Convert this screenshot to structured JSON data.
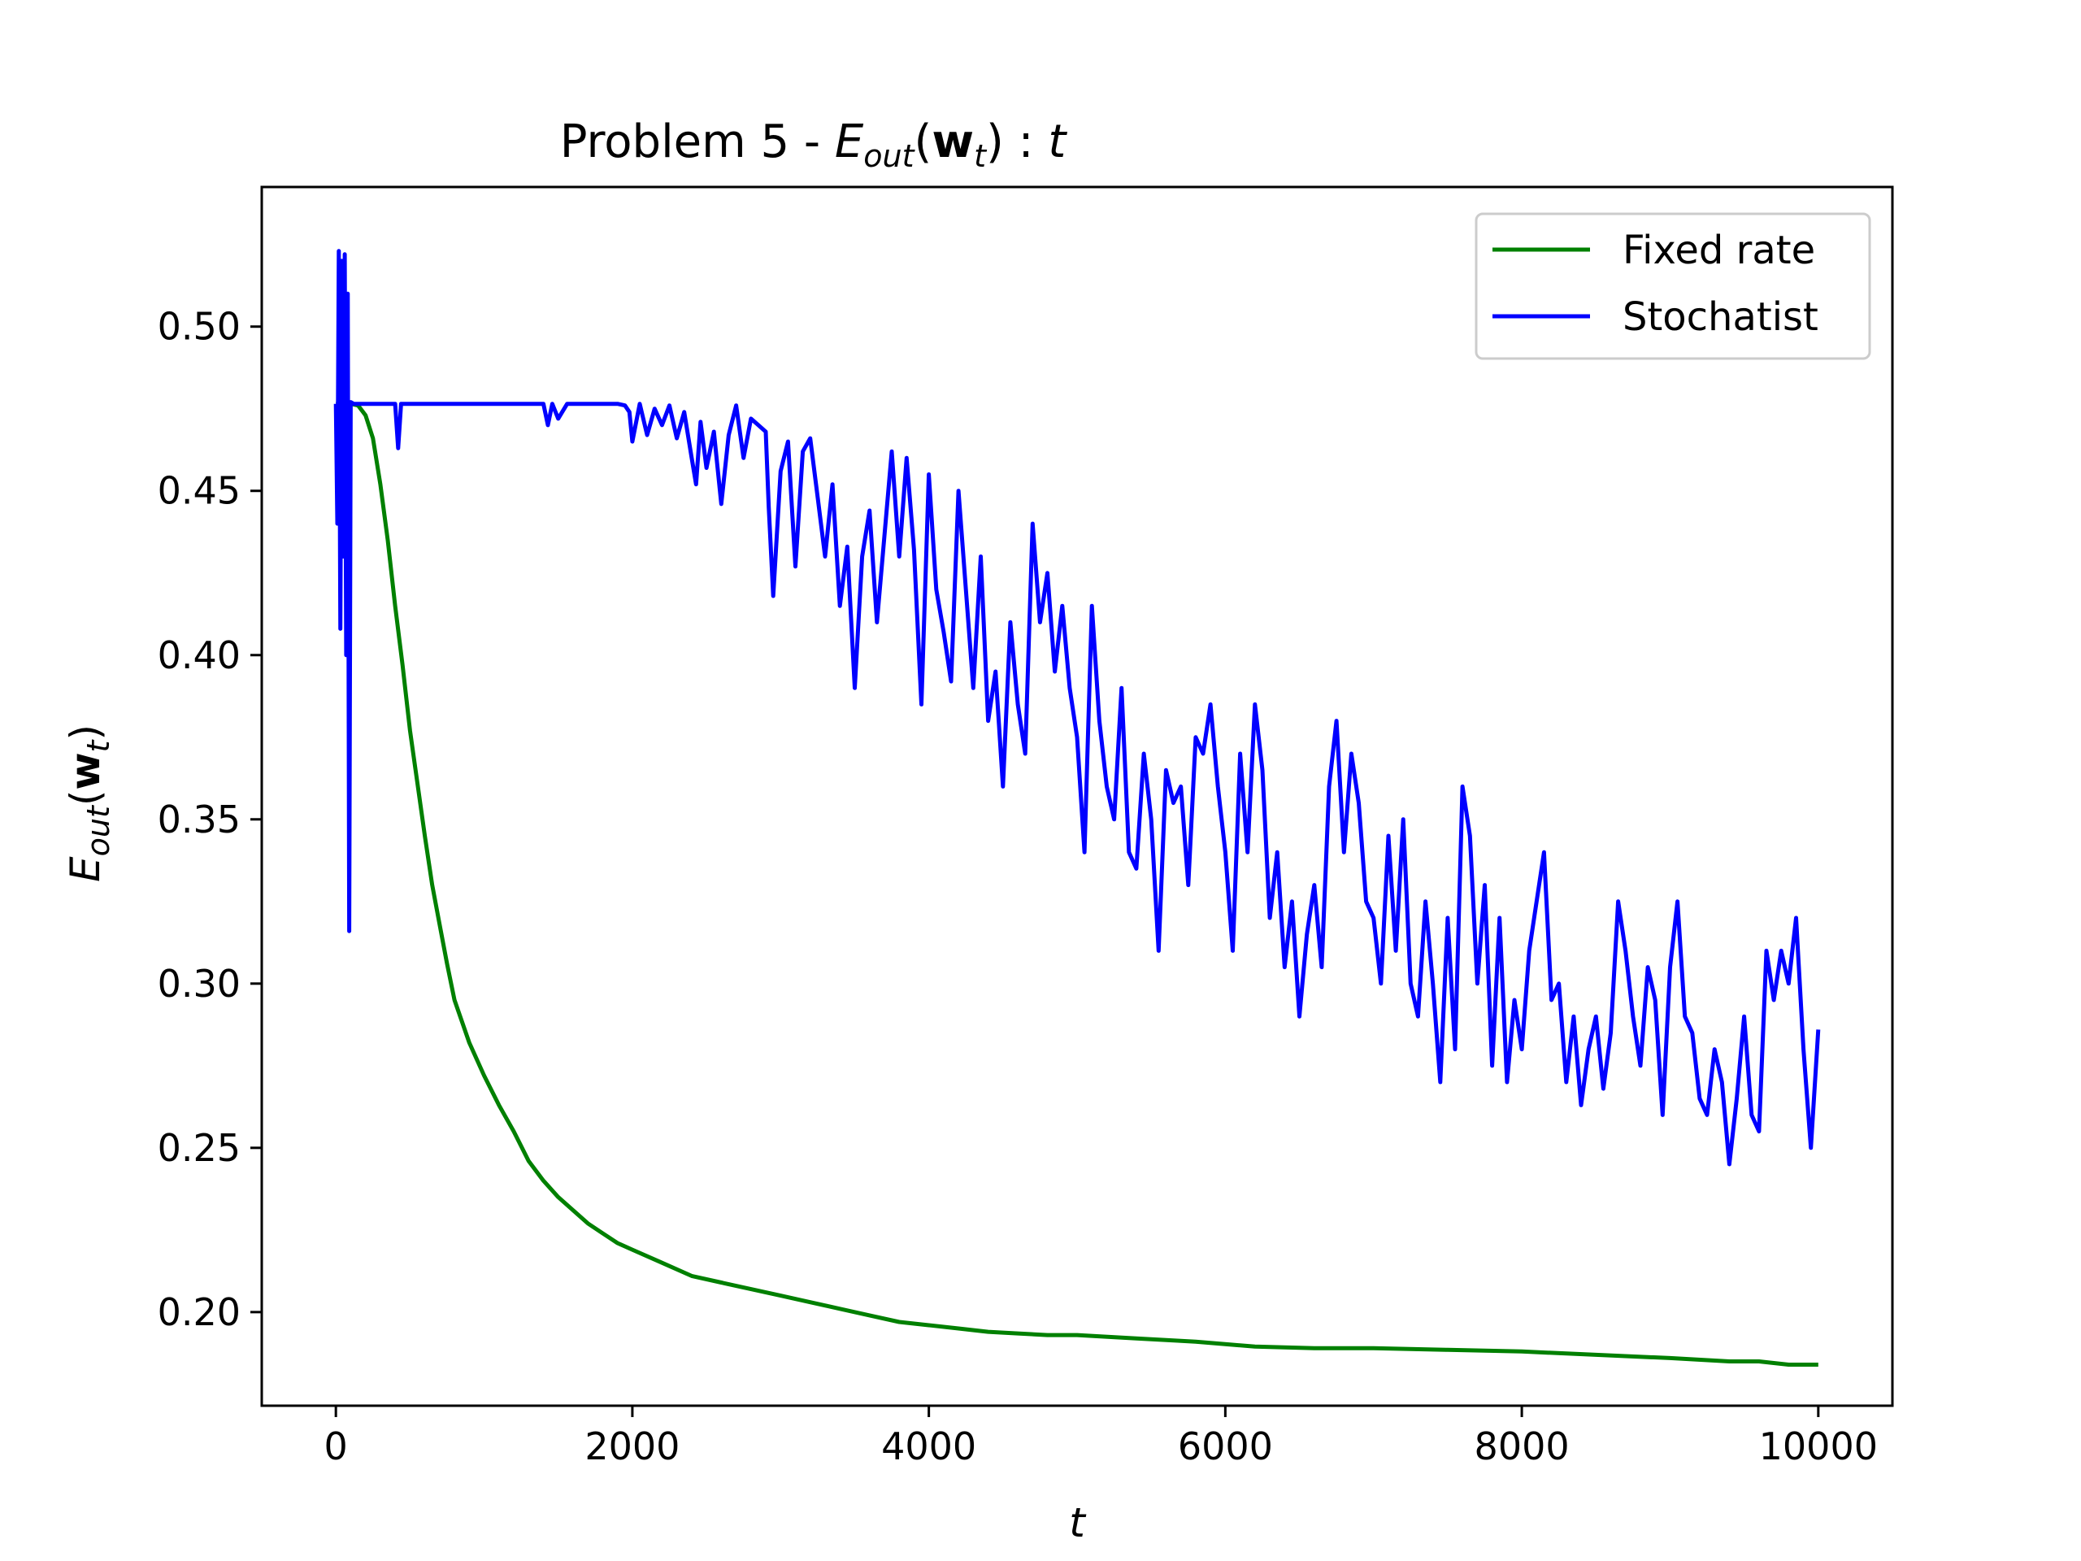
{
  "chart_data": {
    "type": "line",
    "title": {
      "prefix": "Problem 5 - ",
      "func": "E",
      "func_sub": "out",
      "arg_open": "(",
      "arg": "w",
      "arg_sub": "t",
      "arg_close": ")",
      "sep": " : ",
      "var": "t"
    },
    "xlabel": "t",
    "ylabel": {
      "func": "E",
      "func_sub": "out",
      "arg_open": "(",
      "arg": "w",
      "arg_sub": "t",
      "arg_close": ")"
    },
    "xlim": [
      -500,
      10500
    ],
    "ylim": [
      0.1715,
      0.5425
    ],
    "xticks": [
      0,
      2000,
      4000,
      6000,
      8000,
      10000
    ],
    "xtick_labels": [
      "0",
      "2000",
      "4000",
      "6000",
      "8000",
      "10000"
    ],
    "yticks": [
      0.2,
      0.25,
      0.3,
      0.35,
      0.4,
      0.45,
      0.5
    ],
    "ytick_labels": [
      "0.20",
      "0.25",
      "0.30",
      "0.35",
      "0.40",
      "0.45",
      "0.50"
    ],
    "grid": false,
    "legend_position": "top-right",
    "series": [
      {
        "name": "Fixed rate",
        "color": "#008000",
        "x": [
          0,
          100,
          150,
          200,
          250,
          300,
          350,
          400,
          450,
          500,
          550,
          600,
          650,
          700,
          750,
          800,
          900,
          1000,
          1100,
          1200,
          1300,
          1400,
          1500,
          1600,
          1700,
          1800,
          1900,
          2000,
          2200,
          2400,
          2600,
          2800,
          3000,
          3200,
          3400,
          3600,
          3800,
          4000,
          4200,
          4400,
          4600,
          4800,
          5000,
          5400,
          5800,
          6200,
          6600,
          7000,
          7500,
          8000,
          8500,
          9000,
          9400,
          9600,
          9800,
          10000
        ],
        "values": [
          0.4765,
          0.4765,
          0.476,
          0.473,
          0.466,
          0.452,
          0.435,
          0.415,
          0.397,
          0.377,
          0.361,
          0.345,
          0.33,
          0.318,
          0.306,
          0.295,
          0.282,
          0.272,
          0.263,
          0.255,
          0.246,
          0.24,
          0.235,
          0.231,
          0.227,
          0.224,
          0.221,
          0.219,
          0.215,
          0.211,
          0.209,
          0.207,
          0.205,
          0.203,
          0.201,
          0.199,
          0.197,
          0.196,
          0.195,
          0.194,
          0.1935,
          0.193,
          0.193,
          0.192,
          0.191,
          0.1895,
          0.189,
          0.189,
          0.1885,
          0.188,
          0.187,
          0.186,
          0.185,
          0.185,
          0.184,
          0.184
        ]
      },
      {
        "name": "Stochatist",
        "color": "#0000ff",
        "x": [
          0,
          10,
          20,
          30,
          40,
          50,
          60,
          70,
          80,
          90,
          100,
          120,
          150,
          300,
          400,
          420,
          440,
          500,
          800,
          1000,
          1300,
          1400,
          1430,
          1460,
          1500,
          1560,
          1600,
          1700,
          1800,
          1900,
          1950,
          1980,
          2000,
          2050,
          2100,
          2150,
          2200,
          2250,
          2300,
          2350,
          2400,
          2430,
          2460,
          2500,
          2550,
          2600,
          2650,
          2700,
          2750,
          2800,
          2850,
          2900,
          2920,
          2950,
          3000,
          3050,
          3100,
          3150,
          3200,
          3250,
          3300,
          3350,
          3400,
          3450,
          3500,
          3550,
          3600,
          3650,
          3700,
          3750,
          3800,
          3850,
          3900,
          3950,
          4000,
          4050,
          4100,
          4150,
          4200,
          4250,
          4300,
          4350,
          4400,
          4450,
          4500,
          4550,
          4600,
          4650,
          4700,
          4750,
          4800,
          4850,
          4900,
          4950,
          5000,
          5050,
          5100,
          5150,
          5200,
          5250,
          5300,
          5350,
          5400,
          5450,
          5500,
          5550,
          5600,
          5650,
          5700,
          5750,
          5800,
          5850,
          5900,
          5950,
          6000,
          6050,
          6100,
          6150,
          6200,
          6250,
          6300,
          6350,
          6400,
          6450,
          6500,
          6550,
          6600,
          6650,
          6700,
          6750,
          6800,
          6850,
          6900,
          6950,
          7000,
          7050,
          7100,
          7150,
          7200,
          7250,
          7300,
          7350,
          7400,
          7450,
          7500,
          7550,
          7600,
          7650,
          7700,
          7750,
          7800,
          7850,
          7900,
          7950,
          8000,
          8050,
          8100,
          8150,
          8200,
          8250,
          8300,
          8350,
          8400,
          8450,
          8500,
          8550,
          8600,
          8650,
          8700,
          8750,
          8800,
          8850,
          8900,
          8950,
          9000,
          9050,
          9100,
          9150,
          9200,
          9250,
          9300,
          9350,
          9400,
          9450,
          9500,
          9550,
          9600,
          9650,
          9700,
          9750,
          9800,
          9850,
          9900,
          9950,
          10000
        ],
        "values": [
          0.4765,
          0.44,
          0.523,
          0.408,
          0.52,
          0.43,
          0.522,
          0.4,
          0.51,
          0.316,
          0.477,
          0.4765,
          0.4765,
          0.4765,
          0.4765,
          0.463,
          0.4765,
          0.4765,
          0.4765,
          0.4765,
          0.4765,
          0.4765,
          0.47,
          0.4765,
          0.472,
          0.4765,
          0.4765,
          0.4765,
          0.4765,
          0.4765,
          0.476,
          0.474,
          0.465,
          0.4765,
          0.467,
          0.475,
          0.47,
          0.476,
          0.466,
          0.474,
          0.46,
          0.452,
          0.471,
          0.457,
          0.468,
          0.446,
          0.467,
          0.476,
          0.46,
          0.472,
          0.47,
          0.468,
          0.445,
          0.418,
          0.456,
          0.465,
          0.427,
          0.462,
          0.466,
          0.448,
          0.43,
          0.452,
          0.415,
          0.433,
          0.39,
          0.43,
          0.444,
          0.41,
          0.436,
          0.462,
          0.43,
          0.46,
          0.432,
          0.385,
          0.455,
          0.42,
          0.407,
          0.392,
          0.45,
          0.42,
          0.39,
          0.43,
          0.38,
          0.395,
          0.36,
          0.41,
          0.385,
          0.37,
          0.44,
          0.41,
          0.425,
          0.395,
          0.415,
          0.39,
          0.375,
          0.34,
          0.415,
          0.38,
          0.36,
          0.35,
          0.39,
          0.34,
          0.335,
          0.37,
          0.35,
          0.31,
          0.365,
          0.355,
          0.36,
          0.33,
          0.375,
          0.37,
          0.385,
          0.36,
          0.34,
          0.31,
          0.37,
          0.34,
          0.385,
          0.365,
          0.32,
          0.34,
          0.305,
          0.325,
          0.29,
          0.315,
          0.33,
          0.305,
          0.36,
          0.38,
          0.34,
          0.37,
          0.355,
          0.325,
          0.32,
          0.3,
          0.345,
          0.31,
          0.35,
          0.3,
          0.29,
          0.325,
          0.3,
          0.27,
          0.32,
          0.28,
          0.36,
          0.345,
          0.3,
          0.33,
          0.275,
          0.32,
          0.27,
          0.295,
          0.28,
          0.31,
          0.325,
          0.34,
          0.295,
          0.3,
          0.27,
          0.29,
          0.263,
          0.28,
          0.29,
          0.268,
          0.285,
          0.325,
          0.31,
          0.29,
          0.275,
          0.305,
          0.295,
          0.26,
          0.305,
          0.325,
          0.29,
          0.285,
          0.265,
          0.26,
          0.28,
          0.27,
          0.245,
          0.265,
          0.29,
          0.26,
          0.255,
          0.31,
          0.295,
          0.31,
          0.3,
          0.32,
          0.28,
          0.25,
          0.286
        ]
      }
    ]
  }
}
